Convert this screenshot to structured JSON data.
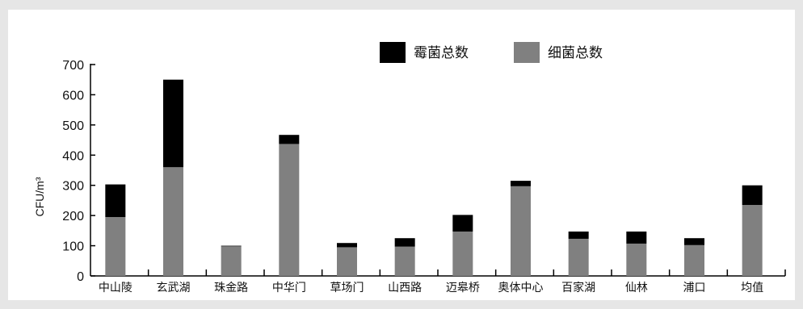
{
  "chart_data": {
    "type": "bar",
    "stacked": true,
    "categories": [
      "中山陵",
      "玄武湖",
      "珠金路",
      "中华门",
      "草场门",
      "山西路",
      "迈皋桥",
      "奥体中心",
      "百家湖",
      "仙林",
      "浦口",
      "均值"
    ],
    "series": [
      {
        "name": "细菌总数",
        "color": "#808080",
        "values": [
          195,
          360,
          98,
          437,
          95,
          97,
          147,
          297,
          123,
          107,
          102,
          235
        ]
      },
      {
        "name": "霉菌总数",
        "color": "#000000",
        "values": [
          108,
          290,
          2,
          30,
          14,
          28,
          55,
          18,
          24,
          40,
          23,
          65
        ]
      }
    ],
    "ylabel": "CFU/m³",
    "yticks": [
      0,
      100,
      200,
      300,
      400,
      500,
      600,
      700
    ],
    "ylim": [
      0,
      700
    ],
    "legend": {
      "placement": "top-right",
      "entries": [
        {
          "label": "霉菌总数",
          "color": "#000000"
        },
        {
          "label": "细菌总数",
          "color": "#808080"
        }
      ]
    },
    "grid": false
  }
}
